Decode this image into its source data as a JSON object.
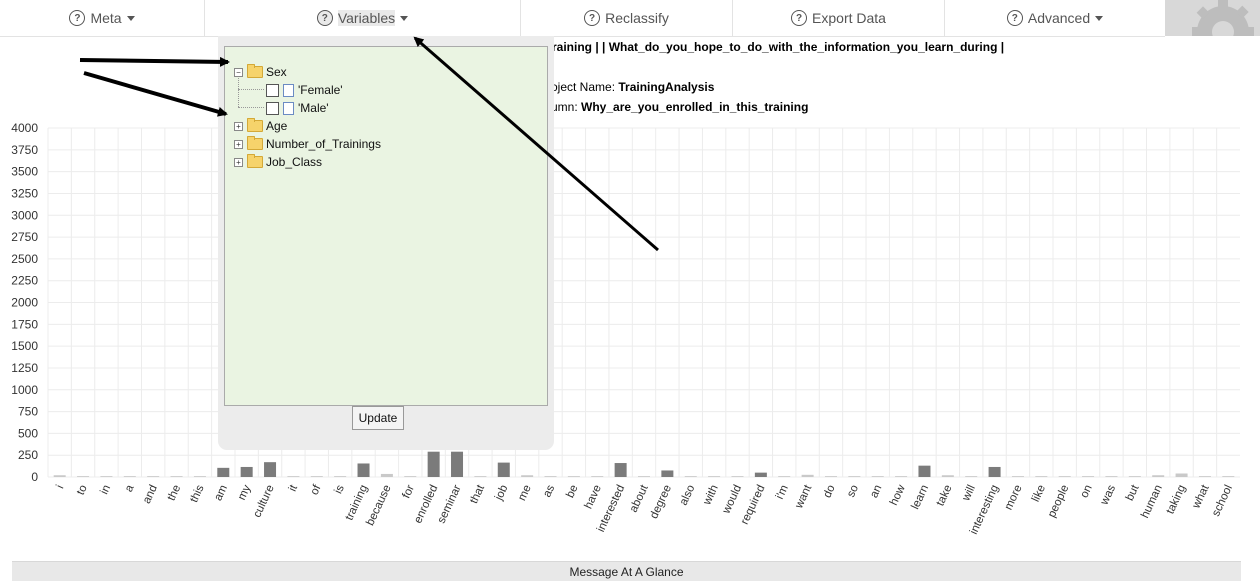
{
  "nav": {
    "items": [
      {
        "label": "Meta",
        "has_caret": true
      },
      {
        "label": "Variables",
        "has_caret": true
      },
      {
        "label": "Reclassify",
        "has_caret": false
      },
      {
        "label": "Export Data",
        "has_caret": false
      },
      {
        "label": "Advanced",
        "has_caret": true
      }
    ],
    "help_glyph": "?"
  },
  "info": {
    "line1": "raining | | What_do_you_hope_to_do_with_the_information_you_learn_during |",
    "project_prefix": "oject Name: ",
    "project_name": "TrainingAnalysis",
    "column_prefix": "umn: ",
    "column_name": "Why_are_you_enrolled_in_this_training"
  },
  "variables_panel": {
    "tree": [
      {
        "label": "Sex",
        "expanded": true,
        "children": [
          "'Female'",
          "'Male'"
        ]
      },
      {
        "label": "Age",
        "expanded": false
      },
      {
        "label": "Number_of_Trainings",
        "expanded": false
      },
      {
        "label": "Job_Class",
        "expanded": false
      }
    ],
    "update_label": "Update"
  },
  "chart_data": {
    "type": "bar",
    "ylim": [
      0,
      4000
    ],
    "yticks": [
      0,
      250,
      500,
      750,
      1000,
      1250,
      1500,
      1750,
      2000,
      2250,
      2500,
      2750,
      3000,
      3250,
      3500,
      3750,
      4000
    ],
    "grid": true,
    "categories": [
      "i",
      "to",
      "in",
      "a",
      "and",
      "the",
      "this",
      "am",
      "my",
      "culture",
      "it",
      "of",
      "is",
      "training",
      "because",
      "for",
      "enrolled",
      "seminar",
      "that",
      "job",
      "me",
      "as",
      "be",
      "have",
      "interested",
      "about",
      "degree",
      "also",
      "with",
      "would",
      "required",
      "i'm",
      "want",
      "do",
      "so",
      "an",
      "how",
      "learn",
      "take",
      "will",
      "interesting",
      "more",
      "like",
      "people",
      "on",
      "was",
      "but",
      "human",
      "taking",
      "what",
      "school"
    ],
    "values": [
      20,
      10,
      10,
      10,
      10,
      10,
      10,
      105,
      115,
      170,
      10,
      10,
      10,
      155,
      35,
      10,
      290,
      290,
      10,
      165,
      20,
      10,
      10,
      10,
      160,
      10,
      75,
      10,
      10,
      10,
      50,
      10,
      25,
      10,
      10,
      10,
      10,
      130,
      20,
      10,
      115,
      10,
      10,
      10,
      10,
      10,
      10,
      20,
      40,
      10,
      10
    ],
    "colors": {
      "bar": "#7b7b7b",
      "grid": "#ececec"
    }
  },
  "footer": {
    "label": "Message At A Glance"
  }
}
